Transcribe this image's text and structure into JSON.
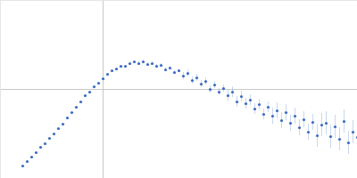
{
  "chart_data": {
    "type": "scatter",
    "x": [
      25,
      30,
      35,
      40,
      45,
      50,
      55,
      60,
      65,
      70,
      75,
      80,
      85,
      90,
      95,
      100,
      105,
      110,
      115,
      120,
      125,
      130,
      135,
      140,
      145,
      150,
      155,
      160,
      165,
      170,
      175,
      180,
      185,
      190,
      195,
      200,
      205,
      210,
      215,
      220,
      225,
      230,
      235,
      240,
      245,
      250,
      255,
      260,
      265,
      270,
      275,
      280,
      285,
      290,
      295,
      300,
      305,
      310,
      315,
      320,
      325,
      330,
      335,
      340,
      345,
      350,
      355,
      360,
      365,
      370,
      375,
      380,
      385,
      390,
      395,
      400
    ],
    "values": [
      14,
      19,
      24,
      29,
      35,
      39,
      45,
      50,
      56,
      61,
      68,
      74,
      80,
      86,
      93,
      97,
      103,
      107,
      112,
      117,
      121,
      123,
      126,
      126,
      129,
      131,
      129,
      131,
      128,
      129,
      126,
      127,
      122,
      124,
      119,
      121,
      115,
      118,
      110,
      113,
      106,
      109,
      100,
      105,
      97,
      101,
      93,
      97,
      86,
      92,
      84,
      88,
      78,
      83,
      72,
      80,
      70,
      76,
      65,
      74,
      62,
      70,
      57,
      66,
      52,
      63,
      48,
      60,
      62,
      47,
      58,
      44,
      64,
      40,
      52,
      46
    ],
    "errors": [
      1,
      1,
      1,
      1,
      1,
      1,
      1,
      1,
      1,
      1,
      1,
      1,
      1,
      1,
      1,
      1,
      1,
      1,
      1,
      1,
      1,
      1,
      1,
      1,
      1,
      1,
      2,
      2,
      2,
      2,
      2,
      2,
      2,
      2,
      2,
      2,
      4,
      4,
      4,
      4,
      4,
      4,
      4,
      4,
      4,
      4,
      6,
      6,
      6,
      6,
      6,
      6,
      6,
      6,
      6,
      6,
      9,
      9,
      9,
      9,
      9,
      9,
      9,
      9,
      9,
      9,
      13,
      13,
      13,
      13,
      13,
      13,
      13,
      13,
      13,
      13
    ],
    "xlim": [
      0,
      400
    ],
    "ylim": [
      0,
      200
    ],
    "xticks": [
      115
    ],
    "yticks": [
      100
    ],
    "grid": true,
    "tick_labels": false,
    "color": "#3b6cc2",
    "marker": "circle"
  }
}
